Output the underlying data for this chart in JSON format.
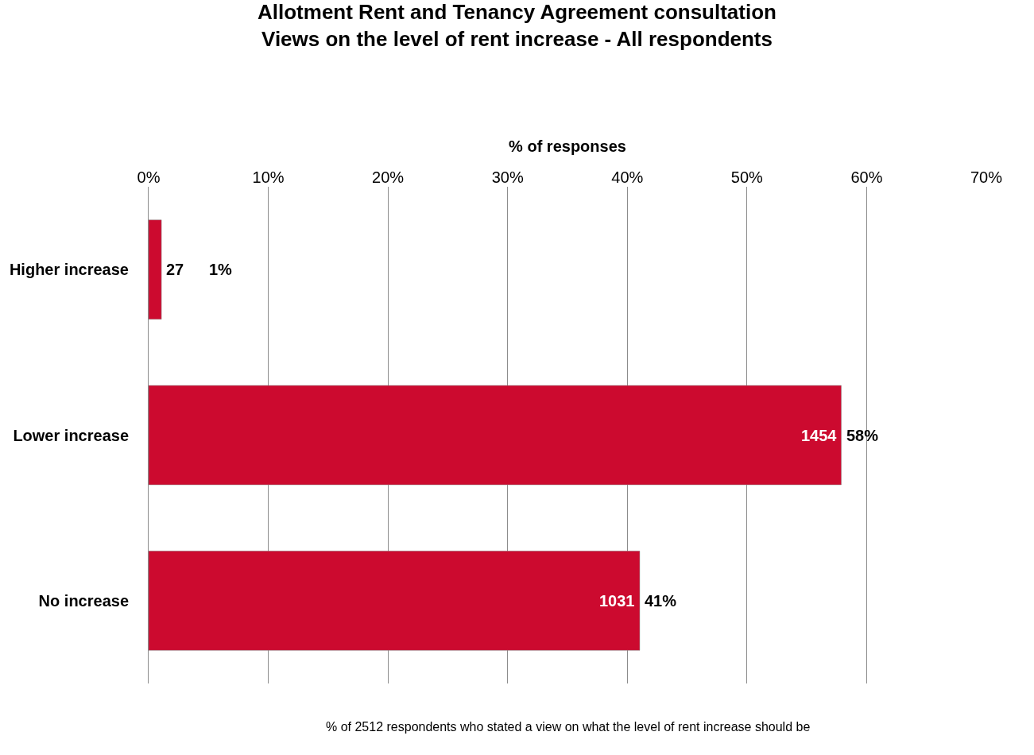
{
  "chart_data": {
    "type": "bar",
    "orientation": "horizontal",
    "title": "Allotment Rent and Tenancy Agreement consultation\nViews on the level of rent increase - All respondents",
    "xlabel": "% of responses",
    "categories": [
      "Higher increase",
      "Lower increase",
      "No increase"
    ],
    "values": [
      1.07,
      57.88,
      41.04
    ],
    "color": "#cc0a2f",
    "value_labels": [
      "1%",
      "58%",
      "41%"
    ],
    "xlim": [
      0,
      70
    ],
    "xticks": [
      {
        "value": 0,
        "label": "0%"
      },
      {
        "value": 10,
        "label": "10%"
      },
      {
        "value": 20,
        "label": "20%"
      },
      {
        "value": 30,
        "label": "30%"
      },
      {
        "value": 40,
        "label": "40%"
      },
      {
        "value": 50,
        "label": "50%"
      },
      {
        "value": 60,
        "label": "60%"
      },
      {
        "value": 70,
        "label": "70%"
      }
    ],
    "grid": "x",
    "legend": false,
    "annotations": [
      {
        "text": "27",
        "x": 1.07,
        "y": "Higher increase"
      },
      {
        "text": "1454",
        "x": 57.88,
        "y": "Lower increase"
      },
      {
        "text": "1031",
        "x": 41.04,
        "y": "No increase"
      },
      "% of 2512 respondents who stated a view on what the level of rent increase should be"
    ]
  }
}
